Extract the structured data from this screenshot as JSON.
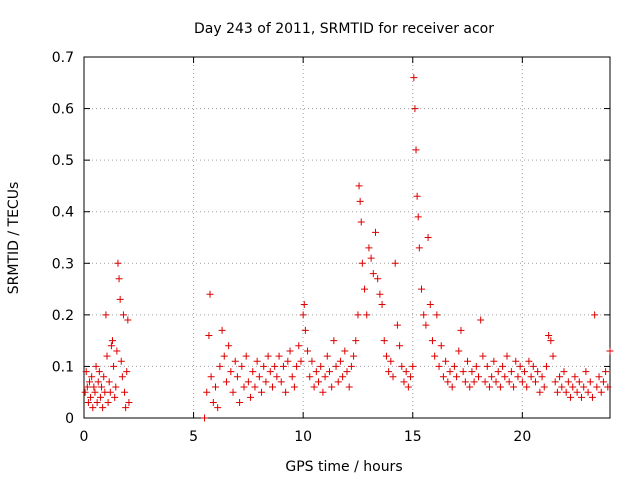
{
  "chart_data": {
    "type": "scatter",
    "title": "Day 243 of 2011, SRMTID for receiver acor",
    "xlabel": "GPS time / hours",
    "ylabel": "SRMTID / TECUs",
    "xlim": [
      0,
      24
    ],
    "ylim": [
      0,
      0.7
    ],
    "xticks": [
      0,
      5,
      10,
      15,
      20
    ],
    "yticks": [
      0,
      0.1,
      0.2,
      0.3,
      0.4,
      0.5,
      0.6,
      0.7
    ],
    "grid": true,
    "marker": "+",
    "color": "#dd0000",
    "series": [
      {
        "name": "SRMTID",
        "points": [
          [
            0.05,
            0.05
          ],
          [
            0.1,
            0.09
          ],
          [
            0.15,
            0.06
          ],
          [
            0.2,
            0.03
          ],
          [
            0.25,
            0.07
          ],
          [
            0.3,
            0.04
          ],
          [
            0.35,
            0.08
          ],
          [
            0.4,
            0.02
          ],
          [
            0.45,
            0.06
          ],
          [
            0.5,
            0.05
          ],
          [
            0.55,
            0.1
          ],
          [
            0.6,
            0.03
          ],
          [
            0.65,
            0.07
          ],
          [
            0.7,
            0.09
          ],
          [
            0.75,
            0.04
          ],
          [
            0.8,
            0.06
          ],
          [
            0.85,
            0.02
          ],
          [
            0.9,
            0.08
          ],
          [
            0.95,
            0.05
          ],
          [
            1.0,
            0.2
          ],
          [
            1.05,
            0.12
          ],
          [
            1.1,
            0.03
          ],
          [
            1.15,
            0.07
          ],
          [
            1.2,
            0.05
          ],
          [
            1.25,
            0.14
          ],
          [
            1.3,
            0.15
          ],
          [
            1.35,
            0.1
          ],
          [
            1.4,
            0.04
          ],
          [
            1.45,
            0.06
          ],
          [
            1.5,
            0.13
          ],
          [
            1.55,
            0.3
          ],
          [
            1.6,
            0.27
          ],
          [
            1.65,
            0.23
          ],
          [
            1.7,
            0.11
          ],
          [
            1.75,
            0.08
          ],
          [
            1.8,
            0.2
          ],
          [
            1.85,
            0.05
          ],
          [
            1.9,
            0.02
          ],
          [
            1.95,
            0.09
          ],
          [
            2.0,
            0.19
          ],
          [
            2.05,
            0.03
          ],
          [
            5.5,
            0.0
          ],
          [
            5.6,
            0.05
          ],
          [
            5.7,
            0.16
          ],
          [
            5.75,
            0.24
          ],
          [
            5.8,
            0.08
          ],
          [
            5.9,
            0.03
          ],
          [
            6.0,
            0.06
          ],
          [
            6.1,
            0.02
          ],
          [
            6.2,
            0.1
          ],
          [
            6.3,
            0.17
          ],
          [
            6.4,
            0.12
          ],
          [
            6.5,
            0.07
          ],
          [
            6.6,
            0.14
          ],
          [
            6.7,
            0.09
          ],
          [
            6.8,
            0.05
          ],
          [
            6.9,
            0.11
          ],
          [
            7.0,
            0.08
          ],
          [
            7.1,
            0.03
          ],
          [
            7.2,
            0.1
          ],
          [
            7.3,
            0.06
          ],
          [
            7.4,
            0.12
          ],
          [
            7.5,
            0.07
          ],
          [
            7.6,
            0.04
          ],
          [
            7.7,
            0.09
          ],
          [
            7.8,
            0.06
          ],
          [
            7.9,
            0.11
          ],
          [
            8.0,
            0.08
          ],
          [
            8.1,
            0.05
          ],
          [
            8.2,
            0.1
          ],
          [
            8.3,
            0.07
          ],
          [
            8.4,
            0.12
          ],
          [
            8.5,
            0.09
          ],
          [
            8.6,
            0.06
          ],
          [
            8.7,
            0.1
          ],
          [
            8.8,
            0.08
          ],
          [
            8.9,
            0.12
          ],
          [
            9.0,
            0.07
          ],
          [
            9.1,
            0.1
          ],
          [
            9.2,
            0.05
          ],
          [
            9.3,
            0.11
          ],
          [
            9.4,
            0.13
          ],
          [
            9.5,
            0.08
          ],
          [
            9.6,
            0.06
          ],
          [
            9.7,
            0.1
          ],
          [
            9.8,
            0.14
          ],
          [
            9.9,
            0.11
          ],
          [
            10.0,
            0.2
          ],
          [
            10.05,
            0.22
          ],
          [
            10.1,
            0.17
          ],
          [
            10.2,
            0.13
          ],
          [
            10.3,
            0.08
          ],
          [
            10.4,
            0.11
          ],
          [
            10.5,
            0.06
          ],
          [
            10.6,
            0.09
          ],
          [
            10.7,
            0.07
          ],
          [
            10.8,
            0.1
          ],
          [
            10.9,
            0.05
          ],
          [
            11.0,
            0.08
          ],
          [
            11.1,
            0.12
          ],
          [
            11.2,
            0.09
          ],
          [
            11.3,
            0.06
          ],
          [
            11.4,
            0.15
          ],
          [
            11.5,
            0.1
          ],
          [
            11.6,
            0.07
          ],
          [
            11.7,
            0.11
          ],
          [
            11.8,
            0.08
          ],
          [
            11.9,
            0.13
          ],
          [
            12.0,
            0.09
          ],
          [
            12.1,
            0.06
          ],
          [
            12.2,
            0.1
          ],
          [
            12.3,
            0.12
          ],
          [
            12.4,
            0.15
          ],
          [
            12.5,
            0.2
          ],
          [
            12.55,
            0.45
          ],
          [
            12.6,
            0.42
          ],
          [
            12.65,
            0.38
          ],
          [
            12.7,
            0.3
          ],
          [
            12.8,
            0.25
          ],
          [
            12.9,
            0.2
          ],
          [
            13.0,
            0.33
          ],
          [
            13.1,
            0.31
          ],
          [
            13.2,
            0.28
          ],
          [
            13.3,
            0.36
          ],
          [
            13.4,
            0.27
          ],
          [
            13.5,
            0.24
          ],
          [
            13.6,
            0.22
          ],
          [
            13.7,
            0.15
          ],
          [
            13.8,
            0.12
          ],
          [
            13.9,
            0.09
          ],
          [
            14.0,
            0.11
          ],
          [
            14.1,
            0.08
          ],
          [
            14.2,
            0.3
          ],
          [
            14.3,
            0.18
          ],
          [
            14.4,
            0.14
          ],
          [
            14.5,
            0.1
          ],
          [
            14.6,
            0.07
          ],
          [
            14.7,
            0.09
          ],
          [
            14.8,
            0.06
          ],
          [
            14.9,
            0.08
          ],
          [
            15.0,
            0.1
          ],
          [
            15.05,
            0.66
          ],
          [
            15.1,
            0.6
          ],
          [
            15.15,
            0.52
          ],
          [
            15.2,
            0.43
          ],
          [
            15.25,
            0.39
          ],
          [
            15.3,
            0.33
          ],
          [
            15.4,
            0.25
          ],
          [
            15.5,
            0.2
          ],
          [
            15.6,
            0.18
          ],
          [
            15.7,
            0.35
          ],
          [
            15.8,
            0.22
          ],
          [
            15.9,
            0.15
          ],
          [
            16.0,
            0.12
          ],
          [
            16.1,
            0.2
          ],
          [
            16.2,
            0.1
          ],
          [
            16.3,
            0.14
          ],
          [
            16.4,
            0.08
          ],
          [
            16.5,
            0.11
          ],
          [
            16.6,
            0.07
          ],
          [
            16.7,
            0.09
          ],
          [
            16.8,
            0.06
          ],
          [
            16.9,
            0.1
          ],
          [
            17.0,
            0.08
          ],
          [
            17.1,
            0.13
          ],
          [
            17.2,
            0.17
          ],
          [
            17.3,
            0.09
          ],
          [
            17.4,
            0.07
          ],
          [
            17.5,
            0.11
          ],
          [
            17.6,
            0.06
          ],
          [
            17.7,
            0.09
          ],
          [
            17.8,
            0.07
          ],
          [
            17.9,
            0.1
          ],
          [
            18.0,
            0.08
          ],
          [
            18.1,
            0.19
          ],
          [
            18.2,
            0.12
          ],
          [
            18.3,
            0.07
          ],
          [
            18.4,
            0.1
          ],
          [
            18.5,
            0.06
          ],
          [
            18.6,
            0.08
          ],
          [
            18.7,
            0.11
          ],
          [
            18.8,
            0.07
          ],
          [
            18.9,
            0.09
          ],
          [
            19.0,
            0.06
          ],
          [
            19.1,
            0.1
          ],
          [
            19.2,
            0.08
          ],
          [
            19.3,
            0.12
          ],
          [
            19.4,
            0.07
          ],
          [
            19.5,
            0.09
          ],
          [
            19.6,
            0.06
          ],
          [
            19.7,
            0.11
          ],
          [
            19.8,
            0.08
          ],
          [
            19.9,
            0.1
          ],
          [
            20.0,
            0.07
          ],
          [
            20.1,
            0.09
          ],
          [
            20.2,
            0.06
          ],
          [
            20.3,
            0.11
          ],
          [
            20.4,
            0.08
          ],
          [
            20.5,
            0.1
          ],
          [
            20.6,
            0.07
          ],
          [
            20.7,
            0.09
          ],
          [
            20.8,
            0.05
          ],
          [
            20.9,
            0.08
          ],
          [
            21.0,
            0.06
          ],
          [
            21.1,
            0.1
          ],
          [
            21.2,
            0.16
          ],
          [
            21.3,
            0.15
          ],
          [
            21.4,
            0.12
          ],
          [
            21.5,
            0.07
          ],
          [
            21.6,
            0.05
          ],
          [
            21.7,
            0.08
          ],
          [
            21.8,
            0.06
          ],
          [
            21.9,
            0.09
          ],
          [
            22.0,
            0.05
          ],
          [
            22.1,
            0.07
          ],
          [
            22.2,
            0.04
          ],
          [
            22.3,
            0.06
          ],
          [
            22.4,
            0.08
          ],
          [
            22.5,
            0.05
          ],
          [
            22.6,
            0.07
          ],
          [
            22.7,
            0.04
          ],
          [
            22.8,
            0.06
          ],
          [
            22.9,
            0.09
          ],
          [
            23.0,
            0.05
          ],
          [
            23.1,
            0.07
          ],
          [
            23.2,
            0.04
          ],
          [
            23.3,
            0.2
          ],
          [
            23.4,
            0.06
          ],
          [
            23.5,
            0.08
          ],
          [
            23.6,
            0.05
          ],
          [
            23.7,
            0.07
          ],
          [
            23.8,
            0.09
          ],
          [
            23.9,
            0.06
          ],
          [
            24.0,
            0.13
          ]
        ]
      }
    ]
  }
}
